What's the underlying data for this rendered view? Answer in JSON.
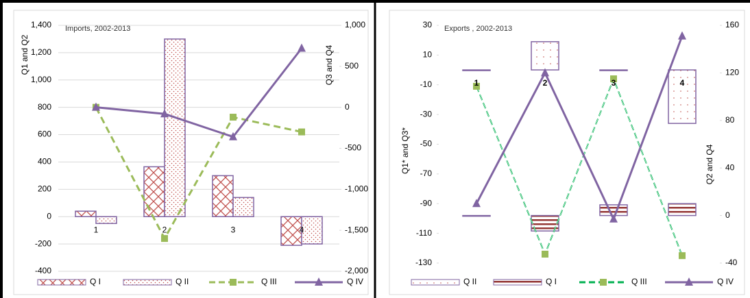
{
  "chart_data": [
    {
      "type": "bar_line",
      "title": "Imports, 2002-2013",
      "categories": [
        "1",
        "2",
        "3",
        "4"
      ],
      "ylabel": "Q1 and Q2",
      "y2label": "Q3 and Q4",
      "ylim": [
        -400,
        1400
      ],
      "yticks": [
        -400,
        -200,
        0,
        200,
        400,
        600,
        800,
        {
          "value": 1000,
          "label": "1,000"
        },
        {
          "value": 1200,
          "label": "1,200"
        },
        {
          "value": 1400,
          "label": "1,400"
        }
      ],
      "y2lim": [
        -2000,
        1000
      ],
      "y2ticks": [
        {
          "value": -2000,
          "label": "-2,000"
        },
        {
          "value": -1500,
          "label": "-1,500"
        },
        {
          "value": -1000,
          "label": "-1,000"
        },
        -500,
        0,
        500,
        {
          "value": 1000,
          "label": "1,000"
        }
      ],
      "bar_layout": "grouped",
      "grid": true,
      "series": [
        {
          "name": "Q I",
          "type": "bar",
          "color": "#c0504d",
          "values": [
            40,
            365,
            300,
            -210
          ]
        },
        {
          "name": "Q II",
          "type": "bar",
          "color": "#c0504d",
          "values": [
            -50,
            1300,
            140,
            -200
          ]
        },
        {
          "name": "Q III",
          "type": "line",
          "color": "#9bbb59",
          "axis": "y2",
          "values": [
            0,
            -1600,
            -120,
            -300
          ]
        },
        {
          "name": "Q IV",
          "type": "line",
          "color": "#8064a2",
          "axis": "y2",
          "values": [
            0,
            -80,
            -360,
            720
          ]
        }
      ]
    },
    {
      "type": "bar_line",
      "title": "Exports , 2002-2013",
      "categories": [
        "1",
        "2",
        "3",
        "4"
      ],
      "ylabel": "Q1* and Q3*",
      "y2label": "Q2 and Q4",
      "ylim": [
        -130,
        30
      ],
      "yticks": [
        -130,
        -110,
        -90,
        -70,
        -50,
        -30,
        -10,
        10,
        30
      ],
      "y2lim": [
        -40,
        160
      ],
      "y2ticks": [
        -40,
        0,
        40,
        80,
        120,
        160
      ],
      "bar_layout": "overlap",
      "grid": false,
      "series": [
        {
          "name": "Q II",
          "type": "bar",
          "color": "#8064a2",
          "values": [
            0,
            19,
            0,
            -36
          ]
        },
        {
          "name": "Q I",
          "type": "bar",
          "color": "#953735",
          "axis": "y2",
          "values": [
            0,
            -13,
            9,
            10
          ]
        },
        {
          "name": "Q III",
          "type": "line",
          "color": "#00b050",
          "values": [
            -11,
            -124,
            -6,
            -125
          ]
        },
        {
          "name": "Q IV",
          "type": "line",
          "color": "#8064a2",
          "axis": "y2",
          "values": [
            10,
            120,
            -3,
            151
          ]
        }
      ]
    }
  ]
}
